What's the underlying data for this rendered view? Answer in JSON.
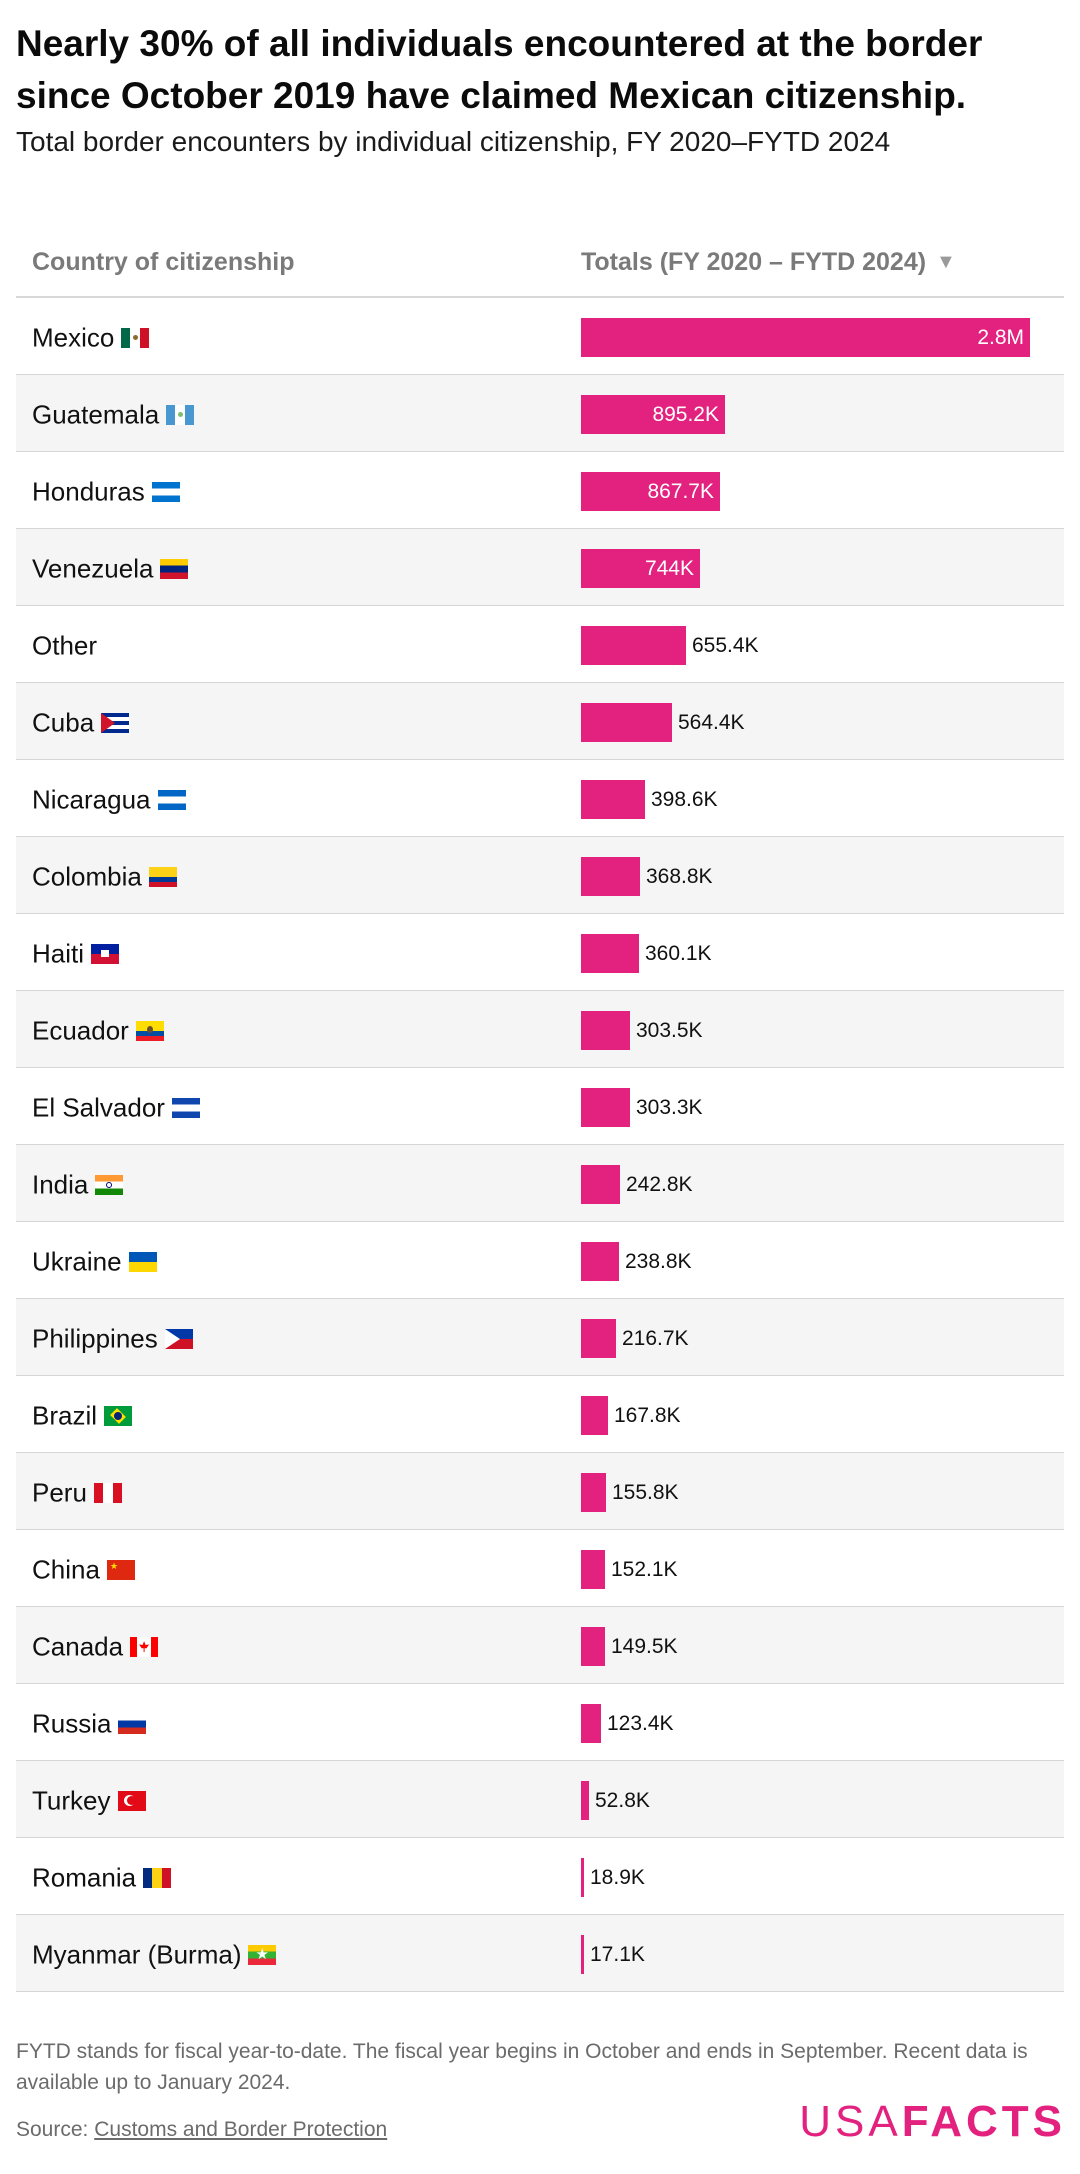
{
  "title": "Nearly 30% of all individuals encountered at the border since October 2019 have claimed Mexican citizenship.",
  "subtitle": "Total border encounters by individual citizenship, FY 2020–FYTD 2024",
  "table": {
    "col_country": "Country of citizenship",
    "col_total": "Totals (FY 2020 – FYTD 2024)",
    "sort_icon": "sort-descending-icon",
    "sort_glyph": "▼"
  },
  "chart_data": {
    "type": "bar",
    "orientation": "horizontal",
    "sort": "descending",
    "bar_color": "#e2227e",
    "categories": [
      "Mexico",
      "Guatemala",
      "Honduras",
      "Venezuela",
      "Other",
      "Cuba",
      "Nicaragua",
      "Colombia",
      "Haiti",
      "Ecuador",
      "El Salvador",
      "India",
      "Ukraine",
      "Philippines",
      "Brazil",
      "Peru",
      "China",
      "Canada",
      "Russia",
      "Turkey",
      "Romania",
      "Myanmar (Burma)"
    ],
    "values": [
      2800000,
      895200,
      867700,
      744000,
      655400,
      564400,
      398600,
      368800,
      360100,
      303500,
      303300,
      242800,
      238800,
      216700,
      167800,
      155800,
      152100,
      149500,
      123400,
      52800,
      18900,
      17100
    ],
    "labels": [
      "2.8M",
      "895.2K",
      "867.7K",
      "744K",
      "655.4K",
      "564.4K",
      "398.6K",
      "368.8K",
      "360.1K",
      "303.5K",
      "303.3K",
      "242.8K",
      "238.8K",
      "216.7K",
      "167.8K",
      "155.8K",
      "152.1K",
      "149.5K",
      "123.4K",
      "52.8K",
      "18.9K",
      "17.1K"
    ],
    "flags": [
      "mexico-flag-icon",
      "guatemala-flag-icon",
      "honduras-flag-icon",
      "venezuela-flag-icon",
      "",
      "cuba-flag-icon",
      "nicaragua-flag-icon",
      "colombia-flag-icon",
      "haiti-flag-icon",
      "ecuador-flag-icon",
      "el-salvador-flag-icon",
      "india-flag-icon",
      "ukraine-flag-icon",
      "philippines-flag-icon",
      "brazil-flag-icon",
      "peru-flag-icon",
      "china-flag-icon",
      "canada-flag-icon",
      "russia-flag-icon",
      "turkey-flag-icon",
      "romania-flag-icon",
      "myanmar-flag-icon"
    ]
  },
  "footnote": "FYTD stands for fiscal year-to-date. The fiscal year begins in October and ends in September. Recent data is available up to January 2024.",
  "source": {
    "label": "Source:",
    "link_text": "Customs and Border Protection"
  },
  "logo": {
    "part1": "USA",
    "part2": "FACTS"
  }
}
